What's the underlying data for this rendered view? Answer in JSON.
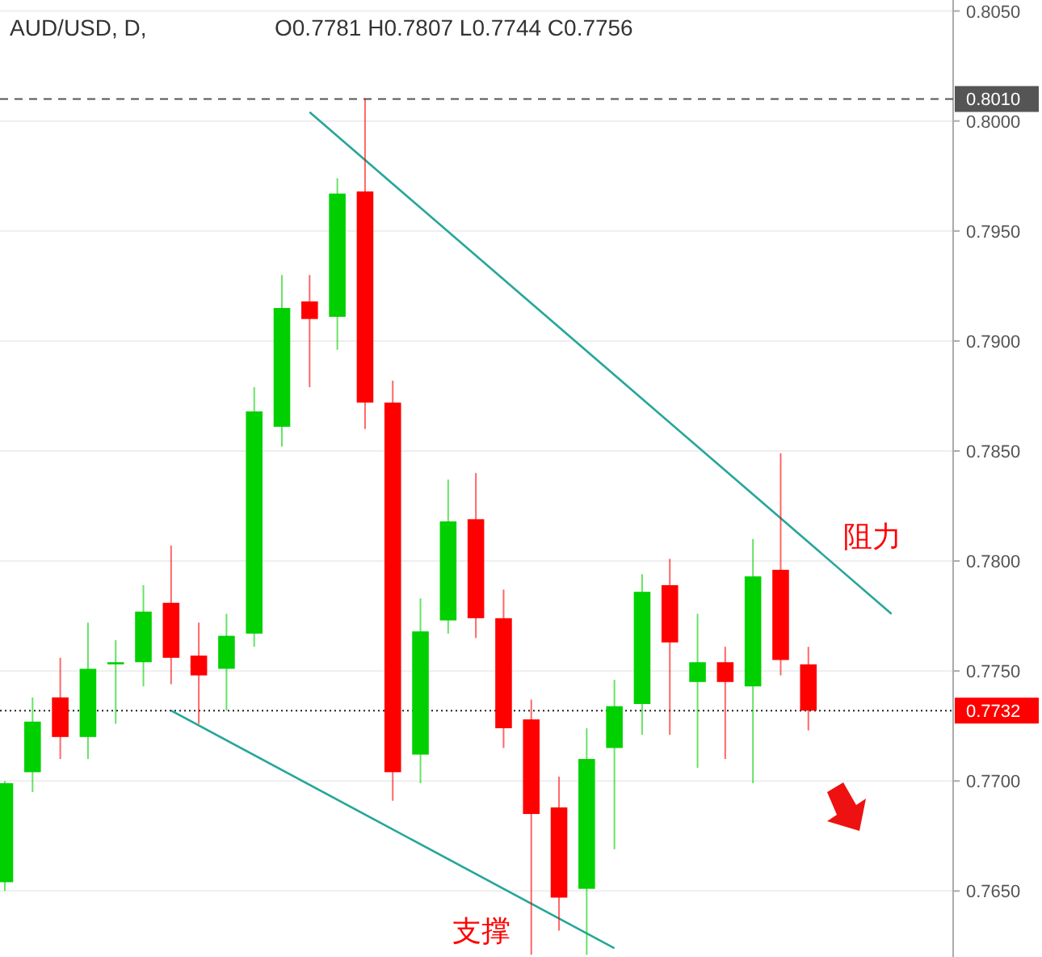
{
  "chart_data": {
    "type": "candlestick",
    "title": "AUD/USD, D,",
    "subtitle": "O0.7781 H0.7807 L0.7744 C0.7756",
    "categories": [
      null,
      null,
      null,
      null,
      null,
      null,
      null,
      null,
      null,
      null,
      null,
      null,
      null,
      null,
      null,
      null,
      null,
      null,
      null,
      null,
      null,
      null,
      null,
      null,
      null,
      null,
      null,
      null,
      null,
      null,
      null,
      null,
      null
    ],
    "ohlc": [
      [
        0.7654,
        0.77,
        0.765,
        0.7699
      ],
      [
        0.7704,
        0.7738,
        0.7695,
        0.7727
      ],
      [
        0.7738,
        0.7756,
        0.771,
        0.772
      ],
      [
        0.772,
        0.7772,
        0.771,
        0.7751
      ],
      [
        0.7753,
        0.7764,
        0.7726,
        0.7754
      ],
      [
        0.7754,
        0.7789,
        0.7743,
        0.7777
      ],
      [
        0.7781,
        0.7807,
        0.7744,
        0.7756
      ],
      [
        0.7757,
        0.7772,
        0.7726,
        0.7748
      ],
      [
        0.7751,
        0.7776,
        0.7732,
        0.7766
      ],
      [
        0.7767,
        0.7879,
        0.7761,
        0.7868
      ],
      [
        0.7861,
        0.793,
        0.7852,
        0.7915
      ],
      [
        0.7918,
        0.793,
        0.7879,
        0.791
      ],
      [
        0.7911,
        0.7974,
        0.7896,
        0.7967
      ],
      [
        0.7968,
        0.801,
        0.786,
        0.7872
      ],
      [
        0.7872,
        0.7882,
        0.7691,
        0.7704
      ],
      [
        0.7712,
        0.7783,
        0.7699,
        0.7768
      ],
      [
        0.7773,
        0.7837,
        0.7767,
        0.7818
      ],
      [
        0.7819,
        0.784,
        0.7765,
        0.7774
      ],
      [
        0.7774,
        0.7787,
        0.7715,
        0.7724
      ],
      [
        0.7728,
        0.7737,
        0.7621,
        0.7685
      ],
      [
        0.7688,
        0.7702,
        0.7632,
        0.7647
      ],
      [
        0.7651,
        0.7724,
        0.7621,
        0.771
      ],
      [
        0.7715,
        0.7746,
        0.7669,
        0.7734
      ],
      [
        0.7735,
        0.7794,
        0.7721,
        0.7786
      ],
      [
        0.7789,
        0.7801,
        0.7721,
        0.7763
      ],
      [
        0.7745,
        0.7776,
        0.7706,
        0.7754
      ],
      [
        0.7754,
        0.7761,
        0.771,
        0.7745
      ],
      [
        0.7743,
        0.781,
        0.7699,
        0.7793
      ],
      [
        0.7796,
        0.7849,
        0.7748,
        0.7755
      ],
      [
        0.7753,
        0.7761,
        0.7723,
        0.7732
      ],
      null,
      null,
      null
    ],
    "colors": [
      "#00d000",
      "#00d000",
      "#ff0000",
      "#00d000",
      "#00d000",
      "#00d000",
      "#ff0000",
      "#ff0000",
      "#00d000",
      "#00d000",
      "#00d000",
      "#ff0000",
      "#00d000",
      "#ff0000",
      "#ff0000",
      "#00d000",
      "#00d000",
      "#ff0000",
      "#ff0000",
      "#ff0000",
      "#ff0000",
      "#00d000",
      "#00d000",
      "#00d000",
      "#ff0000",
      "#00d000",
      "#ff0000",
      "#00d000",
      "#ff0000",
      "#ff0000",
      null,
      null,
      null
    ],
    "series": [
      {
        "type": "line",
        "color": "#26a69a",
        "values": [
          null,
          null,
          null,
          null,
          null,
          null,
          null,
          null,
          null,
          null,
          null,
          0.8004,
          null,
          null,
          null,
          null,
          null,
          null,
          null,
          null,
          null,
          null,
          null,
          null,
          null,
          null,
          null,
          null,
          null,
          null,
          null,
          null,
          0.7776
        ]
      },
      {
        "type": "line",
        "color": "#26a69a",
        "values": [
          null,
          null,
          null,
          null,
          null,
          null,
          0.7732,
          null,
          null,
          null,
          null,
          null,
          null,
          null,
          null,
          null,
          null,
          null,
          null,
          null,
          null,
          null,
          0.7624,
          null,
          null,
          null,
          null,
          null,
          null,
          null,
          null,
          null,
          null
        ]
      }
    ],
    "ylim": [
      0.762,
      0.8055
    ],
    "yticks": [
      {
        "value": 0.765,
        "label": "0.7650"
      },
      {
        "value": 0.77,
        "label": "0.7700"
      },
      {
        "value": 0.775,
        "label": "0.7750"
      },
      {
        "value": 0.78,
        "label": "0.7800"
      },
      {
        "value": 0.785,
        "label": "0.7850"
      },
      {
        "value": 0.79,
        "label": "0.7900"
      },
      {
        "value": 0.795,
        "label": "0.7950"
      },
      {
        "value": 0.8,
        "label": "0.8000"
      },
      {
        "value": 0.805,
        "label": "0.8050"
      }
    ],
    "ref_lines": [
      {
        "axis": "y",
        "value": 0.801,
        "label": "0.8010",
        "color": "#555555",
        "line_style": "dashed"
      },
      {
        "axis": "y",
        "value": 0.7732,
        "label": "0.7732",
        "color": "#222222",
        "line_style": "dotted"
      }
    ],
    "annotations": [
      "阻力",
      "支撑"
    ],
    "grid": "y",
    "tick_labels": "y"
  }
}
